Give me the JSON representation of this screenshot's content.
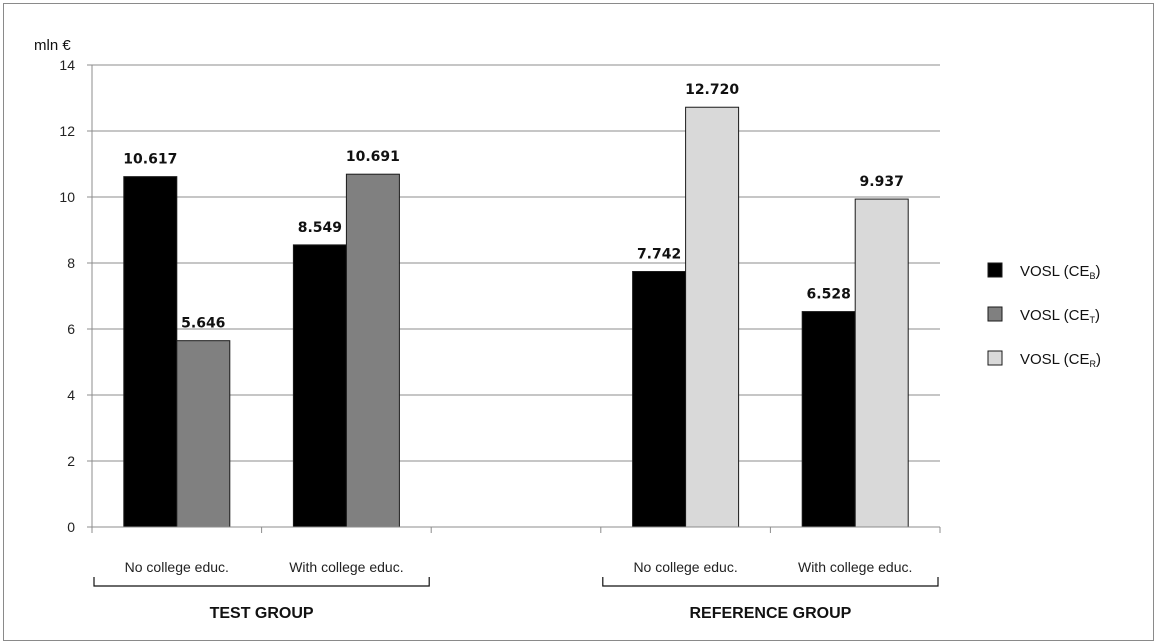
{
  "chart_data": {
    "type": "bar",
    "unit_label": "mln €",
    "ylim": [
      0,
      14
    ],
    "yticks": [
      0,
      2,
      4,
      6,
      8,
      10,
      12,
      14
    ],
    "grid": true,
    "legend_position": "right",
    "groups": [
      {
        "label": "TEST GROUP",
        "categories": [
          {
            "label": "No college educ.",
            "bars": [
              {
                "series": 0,
                "value": 10.617,
                "text": "10.617"
              },
              {
                "series": 1,
                "value": 5.646,
                "text": "5.646"
              }
            ]
          },
          {
            "label": "With college educ.",
            "bars": [
              {
                "series": 0,
                "value": 8.549,
                "text": "8.549"
              },
              {
                "series": 1,
                "value": 10.691,
                "text": "10.691"
              }
            ]
          }
        ]
      },
      {
        "label": "REFERENCE GROUP",
        "categories": [
          {
            "label": "No college educ.",
            "bars": [
              {
                "series": 0,
                "value": 7.742,
                "text": "7.742"
              },
              {
                "series": 2,
                "value": 12.72,
                "text": "12.720"
              }
            ]
          },
          {
            "label": "With college educ.",
            "bars": [
              {
                "series": 0,
                "value": 6.528,
                "text": "6.528"
              },
              {
                "series": 2,
                "value": 9.937,
                "text": "9.937"
              }
            ]
          }
        ]
      }
    ],
    "series": [
      {
        "name": "VOSL (CE",
        "subscript": "B",
        "suffix": ")",
        "color": "#000000"
      },
      {
        "name": "VOSL (CE",
        "subscript": "T",
        "suffix": ")",
        "color": "#808080"
      },
      {
        "name": "VOSL (CE",
        "subscript": "R",
        "suffix": ")",
        "color": "#d9d9d9"
      }
    ]
  }
}
